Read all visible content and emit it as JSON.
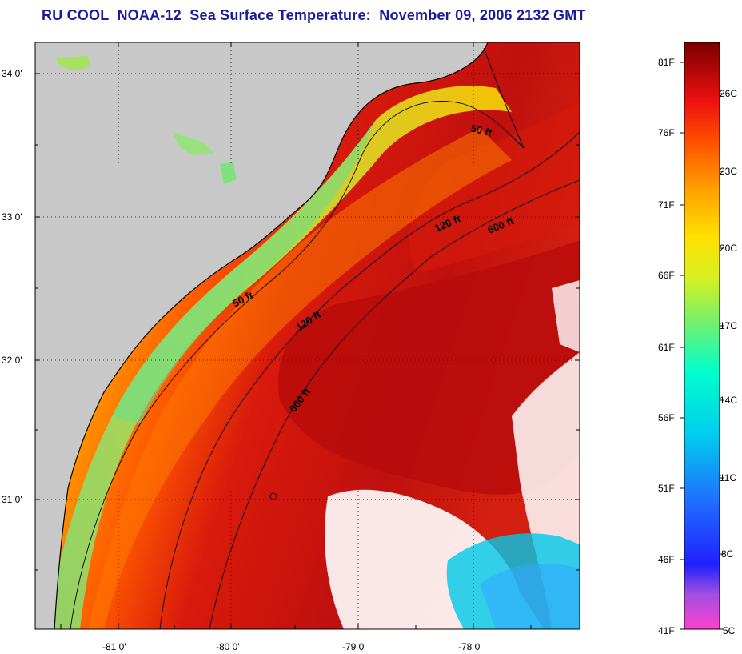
{
  "title": "RU COOL  NOAA-12  Sea Surface Temperature:  November 09, 2006 2132 GMT",
  "map": {
    "lat_labels": [
      "34 0'",
      "33 0'",
      "32 0'",
      "31 0'"
    ],
    "lon_labels": [
      "-81 0'",
      "-80 0'",
      "-79 0'",
      "-78 0'"
    ],
    "contours": [
      "50 ft",
      "50 ft",
      "120 ft",
      "120 ft",
      "600 ft",
      "600 ft"
    ]
  },
  "colorbar": {
    "fahrenheit": [
      "81F",
      "76F",
      "71F",
      "66F",
      "61F",
      "56F",
      "51F",
      "46F",
      "41F"
    ],
    "celsius": [
      "26C",
      "23C",
      "20C",
      "17C",
      "14C",
      "11C",
      "8C",
      "5C"
    ]
  },
  "colors": {
    "land": "#c8c8c8",
    "title": "#1a1a9c",
    "warm": "#c4100e",
    "cool": "#00ccdd"
  }
}
